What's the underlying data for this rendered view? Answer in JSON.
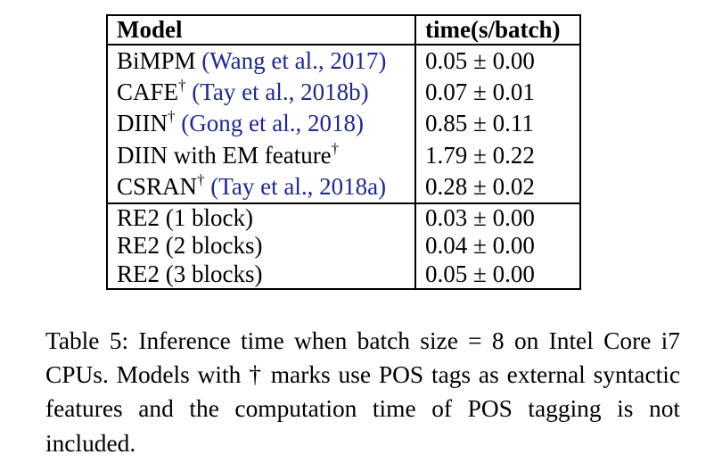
{
  "table": {
    "headers": {
      "model": "Model",
      "time": "time(s/batch)"
    },
    "groups": [
      {
        "rows": [
          {
            "model": "BiMPM",
            "dagger": "",
            "cite": "(Wang et al., 2017)",
            "time": "0.05 ± 0.00"
          },
          {
            "model": "CAFE",
            "dagger": "†",
            "cite": "(Tay et al., 2018b)",
            "time": "0.07 ± 0.01"
          },
          {
            "model": "DIIN",
            "dagger": "†",
            "cite": "(Gong et al., 2018)",
            "time": "0.85 ± 0.11"
          },
          {
            "model": "DIIN with EM feature",
            "dagger": "†",
            "cite": "",
            "time": "1.79 ± 0.22"
          },
          {
            "model": "CSRAN",
            "dagger": "†",
            "cite": "(Tay et al., 2018a)",
            "time": "0.28 ± 0.02"
          }
        ]
      },
      {
        "rows": [
          {
            "model": "RE2 (1 block)",
            "dagger": "",
            "cite": "",
            "time": "0.03 ± 0.00"
          },
          {
            "model": "RE2 (2 blocks)",
            "dagger": "",
            "cite": "",
            "time": "0.04 ± 0.00"
          },
          {
            "model": "RE2 (3 blocks)",
            "dagger": "",
            "cite": "",
            "time": "0.05 ± 0.00"
          }
        ]
      }
    ]
  },
  "caption": {
    "lead": "Table 5: Inference time when batch size",
    "math": " = 8 ",
    "rest": "on Intel Core i7 CPUs. Models with † marks use POS tags as external syntactic features and the computation time of POS tagging is not included."
  },
  "colors": {
    "citation": "#1f2a8a",
    "text": "#000000"
  }
}
